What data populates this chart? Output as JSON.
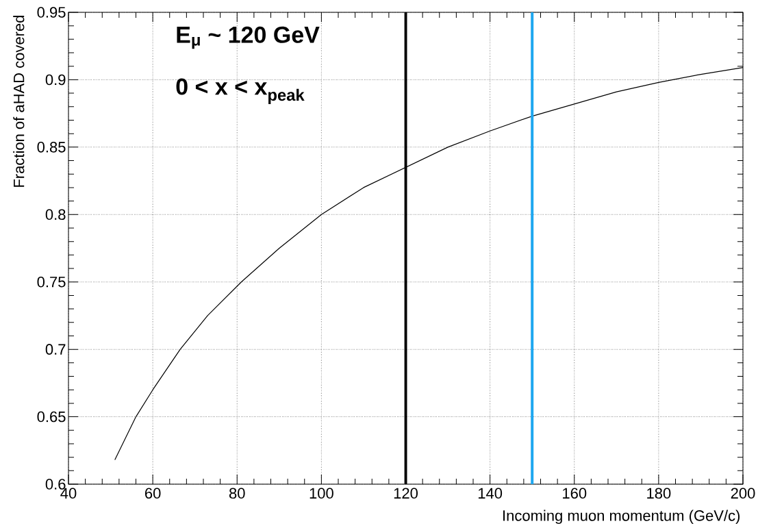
{
  "chart_data": {
    "type": "line",
    "xlabel": "Incoming muon momentum (GeV/c)",
    "ylabel": "Fraction of aHAD covered",
    "x": [
      51,
      56,
      60,
      66.5,
      73,
      81,
      90,
      100,
      110,
      120,
      130,
      140,
      150,
      160,
      170,
      180,
      190,
      200
    ],
    "series": [
      {
        "color": "#000000",
        "values": [
          0.618,
          0.65,
          0.67,
          0.7,
          0.725,
          0.75,
          0.775,
          0.8,
          0.82,
          0.835,
          0.85,
          0.862,
          0.873,
          0.882,
          0.891,
          0.898,
          0.904,
          0.909
        ]
      }
    ],
    "xlim": [
      40,
      200
    ],
    "ylim": [
      0.6,
      0.95
    ],
    "xticks": [
      40,
      60,
      80,
      100,
      120,
      140,
      160,
      180,
      200
    ],
    "yticks": [
      0.6,
      0.65,
      0.7,
      0.75,
      0.8,
      0.85,
      0.9,
      0.95
    ],
    "grid": true,
    "marker": "none",
    "line_style": "solid",
    "ref_lines": [
      {
        "axis": "x",
        "value": 120,
        "color": "#000000"
      },
      {
        "axis": "x",
        "value": 150,
        "color": "#1ea7f0"
      }
    ],
    "annotations": [
      "**E$_{μ}$ ~ 120 GeV**",
      "**0 < x < x$_{peak}$**"
    ]
  }
}
